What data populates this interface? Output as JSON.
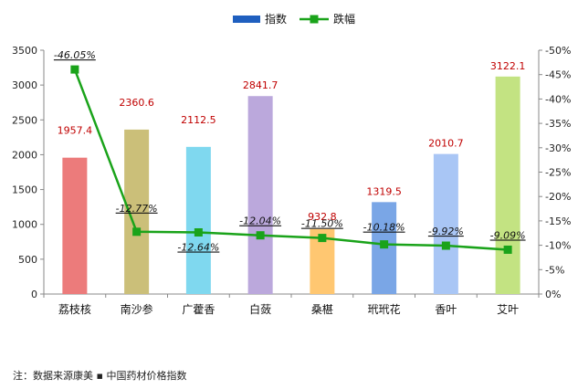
{
  "chart_data": {
    "type": "bar",
    "categories": [
      "荔枝核",
      "南沙参",
      "广藿香",
      "白蔹",
      "桑椹",
      "玳玳花",
      "香叶",
      "艾叶"
    ],
    "series": [
      {
        "name": "指数",
        "type": "bar",
        "axis": "left",
        "values": [
          1957.4,
          2360.6,
          2112.5,
          2841.7,
          932.8,
          1319.5,
          2010.7,
          3122.1
        ],
        "labels": [
          "1957.4",
          "2360.6",
          "2112.5",
          "2841.7",
          "932.8",
          "1319.5",
          "2010.7",
          "3122.1"
        ],
        "legend_color": "#1f5fbf"
      },
      {
        "name": "跌幅",
        "type": "line",
        "axis": "right",
        "values": [
          46.05,
          12.77,
          12.64,
          12.04,
          11.5,
          10.18,
          9.92,
          9.09
        ],
        "labels": [
          "-46.05%",
          "-12.77%",
          "-12.64%",
          "-12.04%",
          "-11.50%",
          "-10.18%",
          "-9.92%",
          "-9.09%"
        ],
        "color": "#1aa31a"
      }
    ],
    "bar_colors": [
      "#ec7b7b",
      "#cbbf79",
      "#7fd8ef",
      "#bba8dc",
      "#ffc771",
      "#7aa6e6",
      "#a9c6f5",
      "#c3e382"
    ],
    "ylim_left": [
      0,
      3500
    ],
    "yticks_left": [
      "0",
      "500",
      "1000",
      "1500",
      "2000",
      "2500",
      "3000",
      "3500"
    ],
    "ylim_right": [
      0,
      50
    ],
    "yticks_right": [
      "0%",
      "-5%",
      "-10%",
      "-15%",
      "-20%",
      "-25%",
      "-30%",
      "-35%",
      "-40%",
      "-45%",
      "-50%"
    ],
    "legend_position": "top-center",
    "grid": false
  },
  "footnote": "注：数据来源康美 ▪ 中国药材价格指数"
}
